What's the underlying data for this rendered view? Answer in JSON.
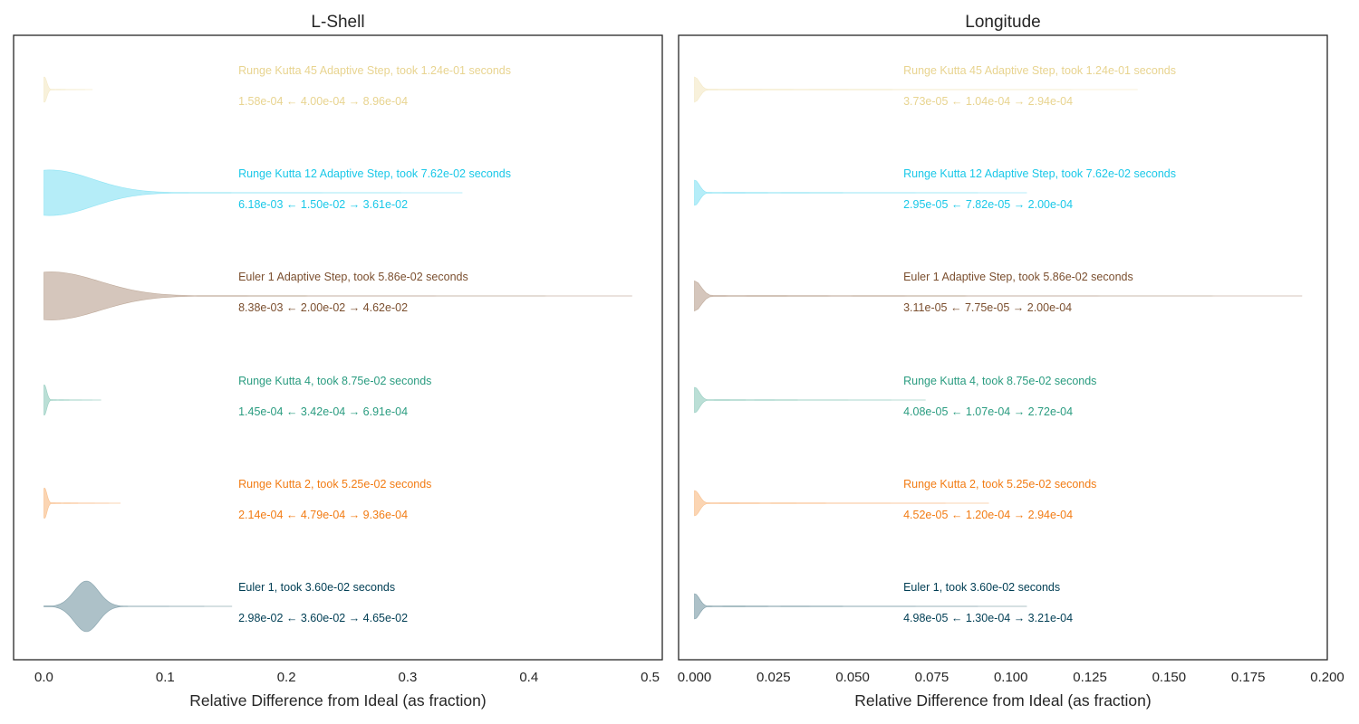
{
  "chart_data": [
    {
      "type": "violin",
      "title": "L-Shell",
      "xlabel": "Relative Difference from Ideal (as fraction)",
      "xlim": [
        -0.025,
        0.51
      ],
      "xticks": [
        0.0,
        0.1,
        0.2,
        0.3,
        0.4,
        0.5
      ],
      "xtick_labels": [
        "0.0",
        "0.1",
        "0.2",
        "0.3",
        "0.4",
        "0.5"
      ],
      "grid": false,
      "series": [
        {
          "name": "Runge Kutta 45 Adaptive Step",
          "label": "Runge Kutta 45 Adaptive Step, took 1.24e-01 seconds",
          "color": "#e8d490",
          "stats": {
            "low": "1.58e-04",
            "median": "4.00e-04",
            "high": "8.96e-04"
          },
          "max_value": 0.04,
          "peak": 0.0004,
          "peak_halfwidth": 0.5,
          "spread": 0.002,
          "tail_halfwidth": 0.02
        },
        {
          "name": "Runge Kutta 12 Adaptive Step",
          "label": "Runge Kutta 12 Adaptive Step, took 7.62e-02 seconds",
          "color": "#1ac8e8",
          "stats": {
            "low": "6.18e-03",
            "median": "1.50e-02",
            "high": "3.61e-02"
          },
          "max_value": 0.345,
          "peak": 0.005,
          "peak_halfwidth": 0.9,
          "spread": 0.035,
          "tail_halfwidth": 0.02
        },
        {
          "name": "Euler 1 Adaptive Step",
          "label": "Euler 1 Adaptive Step, took 5.86e-02 seconds",
          "color": "#7b4f2f",
          "stats": {
            "low": "8.38e-03",
            "median": "2.00e-02",
            "high": "4.62e-02"
          },
          "max_value": 0.485,
          "peak": 0.006,
          "peak_halfwidth": 0.95,
          "spread": 0.04,
          "tail_halfwidth": 0.02
        },
        {
          "name": "Runge Kutta 4",
          "label": "Runge Kutta 4, took 8.75e-02 seconds",
          "color": "#2a9c80",
          "stats": {
            "low": "1.45e-04",
            "median": "3.42e-04",
            "high": "6.91e-04"
          },
          "max_value": 0.047,
          "peak": 0.0003,
          "peak_halfwidth": 0.6,
          "spread": 0.002,
          "tail_halfwidth": 0.02
        },
        {
          "name": "Runge Kutta 2",
          "label": "Runge Kutta 2, took 5.25e-02 seconds",
          "color": "#f27c14",
          "stats": {
            "low": "2.14e-04",
            "median": "4.79e-04",
            "high": "9.36e-04"
          },
          "max_value": 0.063,
          "peak": 0.0005,
          "peak_halfwidth": 0.6,
          "spread": 0.002,
          "tail_halfwidth": 0.02
        },
        {
          "name": "Euler 1",
          "label": "Euler 1, took 3.60e-02 seconds",
          "color": "#003e54",
          "stats": {
            "low": "2.98e-02",
            "median": "3.60e-02",
            "high": "4.65e-02"
          },
          "max_value": 0.155,
          "peak": 0.035,
          "peak_halfwidth": 1.0,
          "spread": 0.01,
          "tail_halfwidth": 0.02
        }
      ]
    },
    {
      "type": "violin",
      "title": "Longitude",
      "xlabel": "Relative Difference from Ideal (as fraction)",
      "xlim": [
        -0.005,
        0.2
      ],
      "xticks": [
        0.0,
        0.025,
        0.05,
        0.075,
        0.1,
        0.125,
        0.15,
        0.175,
        0.2
      ],
      "xtick_labels": [
        "0.000",
        "0.025",
        "0.050",
        "0.075",
        "0.100",
        "0.125",
        "0.150",
        "0.175",
        "0.200"
      ],
      "grid": false,
      "series": [
        {
          "name": "Runge Kutta 45 Adaptive Step",
          "label": "Runge Kutta 45 Adaptive Step, took 1.24e-01 seconds",
          "color": "#e8d490",
          "stats": {
            "low": "3.73e-05",
            "median": "1.04e-04",
            "high": "2.94e-04"
          },
          "max_value": 0.14,
          "peak": 0.0001,
          "peak_halfwidth": 0.5,
          "spread": 0.0015,
          "tail_halfwidth": 0.02
        },
        {
          "name": "Runge Kutta 12 Adaptive Step",
          "label": "Runge Kutta 12 Adaptive Step, took 7.62e-02 seconds",
          "color": "#1ac8e8",
          "stats": {
            "low": "2.95e-05",
            "median": "7.82e-05",
            "high": "2.00e-04"
          },
          "max_value": 0.105,
          "peak": 0.0001,
          "peak_halfwidth": 0.5,
          "spread": 0.0015,
          "tail_halfwidth": 0.02
        },
        {
          "name": "Euler 1 Adaptive Step",
          "label": "Euler 1 Adaptive Step, took 5.86e-02 seconds",
          "color": "#7b4f2f",
          "stats": {
            "low": "3.11e-05",
            "median": "7.75e-05",
            "high": "2.00e-04"
          },
          "max_value": 0.192,
          "peak": 0.0001,
          "peak_halfwidth": 0.6,
          "spread": 0.002,
          "tail_halfwidth": 0.02
        },
        {
          "name": "Runge Kutta 4",
          "label": "Runge Kutta 4, took 8.75e-02 seconds",
          "color": "#2a9c80",
          "stats": {
            "low": "4.08e-05",
            "median": "1.07e-04",
            "high": "2.72e-04"
          },
          "max_value": 0.073,
          "peak": 0.0001,
          "peak_halfwidth": 0.5,
          "spread": 0.0015,
          "tail_halfwidth": 0.02
        },
        {
          "name": "Runge Kutta 2",
          "label": "Runge Kutta 2, took 5.25e-02 seconds",
          "color": "#f27c14",
          "stats": {
            "low": "4.52e-05",
            "median": "1.20e-04",
            "high": "2.94e-04"
          },
          "max_value": 0.093,
          "peak": 0.0001,
          "peak_halfwidth": 0.5,
          "spread": 0.0015,
          "tail_halfwidth": 0.02
        },
        {
          "name": "Euler 1",
          "label": "Euler 1, took 3.60e-02 seconds",
          "color": "#003e54",
          "stats": {
            "low": "4.98e-05",
            "median": "1.30e-04",
            "high": "3.21e-04"
          },
          "max_value": 0.105,
          "peak": 0.0001,
          "peak_halfwidth": 0.5,
          "spread": 0.0015,
          "tail_halfwidth": 0.02
        }
      ]
    }
  ]
}
